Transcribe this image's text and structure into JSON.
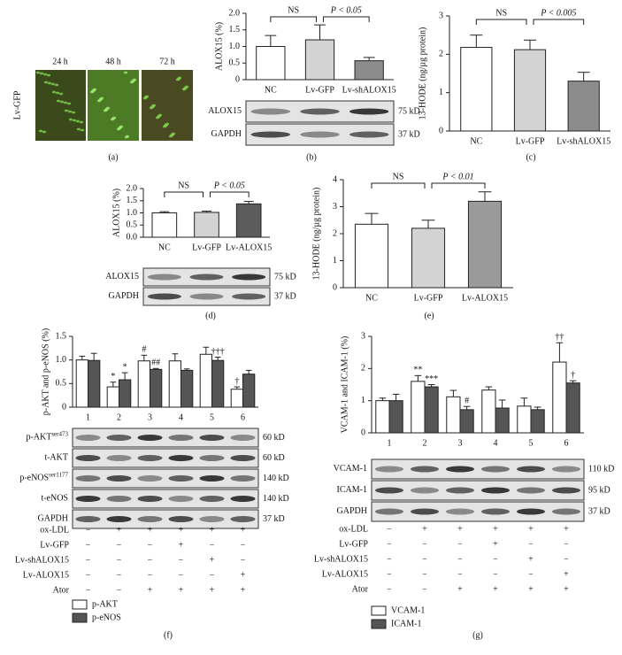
{
  "panel_a": {
    "side_label": "Lv-GFP",
    "time_labels": [
      "24 h",
      "48 h",
      "72 h"
    ],
    "panel_label": "(a)"
  },
  "chart_data": [
    {
      "type": "bar",
      "ylabel": "ALOX15 (%)",
      "categories": [
        "NC",
        "Lv-GFP",
        "Lv-shALOX15"
      ],
      "values": [
        1.0,
        1.2,
        0.57
      ],
      "errors": [
        0.33,
        0.45,
        0.1
      ],
      "colors": [
        "#ffffff",
        "#d3d3d3",
        "#8c8c8c"
      ],
      "ylim": [
        0,
        2
      ],
      "yticks": [
        0,
        0.5,
        {
          "value": 1,
          "label": "1.0"
        },
        1.5,
        {
          "value": 2,
          "label": "2.0"
        }
      ],
      "annotations": [
        "NS",
        "P < 0.05"
      ],
      "blots": [
        {
          "label": "ALOX15",
          "kd": "75 kD"
        },
        {
          "label": "GAPDH",
          "kd": "37 kD"
        }
      ],
      "panel_label": "(b)"
    },
    {
      "type": "bar",
      "ylabel": "13-HODE (ng/µg protein)",
      "categories": [
        "NC",
        "Lv-GFP",
        "Lv-shALOX15"
      ],
      "values": [
        2.18,
        2.12,
        1.3
      ],
      "errors": [
        0.32,
        0.25,
        0.23
      ],
      "colors": [
        "#ffffff",
        "#d3d3d3",
        "#8c8c8c"
      ],
      "ylim": [
        0,
        3
      ],
      "yticks": [
        0,
        1,
        2,
        3
      ],
      "annotations": [
        "NS",
        "P < 0.005"
      ],
      "panel_label": "(c)"
    },
    {
      "type": "bar",
      "ylabel": "ALOX15 (%)",
      "categories": [
        "NC",
        "Lv-GFP",
        "Lv-ALOX15"
      ],
      "values": [
        1.0,
        1.02,
        1.37
      ],
      "errors": [
        0.05,
        0.05,
        0.1
      ],
      "colors": [
        "#ffffff",
        "#d3d3d3",
        "#5c5c5c"
      ],
      "ylim": [
        0,
        2
      ],
      "yticks": [
        {
          "value": 0,
          "label": "0.0"
        },
        0.5,
        {
          "value": 1,
          "label": "1.0"
        },
        1.5,
        {
          "value": 2,
          "label": "2.0"
        }
      ],
      "annotations": [
        "NS",
        "P < 0.05"
      ],
      "blots": [
        {
          "label": "ALOX15",
          "kd": "75 kD"
        },
        {
          "label": "GAPDH",
          "kd": "37 kD"
        }
      ],
      "panel_label": "(d)"
    },
    {
      "type": "bar",
      "ylabel": "13-HODE (ng/µg protein)",
      "categories": [
        "NC",
        "Lv-GFP",
        "Lv-ALOX15"
      ],
      "values": [
        2.35,
        2.2,
        3.2
      ],
      "errors": [
        0.4,
        0.3,
        0.35
      ],
      "colors": [
        "#ffffff",
        "#d3d3d3",
        "#9a9a9a"
      ],
      "ylim": [
        0,
        4
      ],
      "yticks": [
        0,
        1,
        2,
        3,
        4
      ],
      "annotations": [
        "NS",
        "P < 0.01"
      ],
      "panel_label": "(e)"
    },
    {
      "type": "grouped-bar",
      "ylabel": "p-AKT and p-eNOS (%)",
      "categories": [
        "1",
        "2",
        "3",
        "4",
        "5",
        "6"
      ],
      "series": [
        {
          "name": "p-AKT",
          "color": "#ffffff",
          "values": [
            1.0,
            0.43,
            0.98,
            0.98,
            1.12,
            0.38
          ],
          "errors": [
            0.08,
            0.1,
            0.12,
            0.15,
            0.15,
            0.05
          ],
          "markers": [
            null,
            "*",
            "#",
            null,
            null,
            "†"
          ]
        },
        {
          "name": "p-eNOS",
          "color": "#555555",
          "values": [
            0.99,
            0.58,
            0.8,
            0.78,
            0.99,
            0.7
          ],
          "errors": [
            0.15,
            0.15,
            0.02,
            0.03,
            0.07,
            0.08
          ],
          "markers": [
            null,
            "*",
            "##",
            null,
            "†††",
            null
          ]
        }
      ],
      "ylim": [
        0,
        1.5
      ],
      "yticks": [
        0,
        0.5,
        {
          "value": 1,
          "label": "1.0"
        },
        1.5
      ],
      "blots": [
        {
          "label": "p-AKT",
          "sup": "ser473",
          "kd": "60 kD"
        },
        {
          "label": "t-AKT",
          "kd": "60 kD"
        },
        {
          "label": "p-eNOS",
          "sup": "ser1177",
          "kd": "140 kD"
        },
        {
          "label": "t-eNOS",
          "kd": "140 kD"
        },
        {
          "label": "GAPDH",
          "kd": "37 kD"
        }
      ],
      "treatments": [
        {
          "label": "ox-LDL",
          "marks": [
            "−",
            "+",
            "+",
            "+",
            "+",
            "+"
          ]
        },
        {
          "label": "Lv-GFP",
          "marks": [
            "−",
            "−",
            "−",
            "+",
            "−",
            "−"
          ]
        },
        {
          "label": "Lv-shALOX15",
          "marks": [
            "−",
            "−",
            "−",
            "−",
            "+",
            "−"
          ]
        },
        {
          "label": "Lv-ALOX15",
          "marks": [
            "−",
            "−",
            "−",
            "−",
            "−",
            "+"
          ]
        },
        {
          "label": "Ator",
          "marks": [
            "−",
            "−",
            "+",
            "+",
            "+",
            "+"
          ]
        }
      ],
      "panel_label": "(f)"
    },
    {
      "type": "grouped-bar",
      "ylabel": "VCAM-1 and ICAM-1 (%)",
      "categories": [
        "1",
        "2",
        "3",
        "4",
        "5",
        "6"
      ],
      "series": [
        {
          "name": "VCAM-1",
          "color": "#ffffff",
          "values": [
            1.0,
            1.6,
            1.12,
            1.33,
            0.83,
            2.2
          ],
          "errors": [
            0.08,
            0.18,
            0.2,
            0.1,
            0.25,
            0.6
          ],
          "markers": [
            null,
            "**",
            null,
            null,
            null,
            "††"
          ]
        },
        {
          "name": "ICAM-1",
          "color": "#555555",
          "values": [
            1.0,
            1.43,
            0.72,
            0.77,
            0.72,
            1.55
          ],
          "errors": [
            0.2,
            0.07,
            0.1,
            0.25,
            0.08,
            0.07
          ],
          "markers": [
            null,
            "***",
            "#",
            null,
            null,
            "†"
          ]
        }
      ],
      "ylim": [
        0,
        3
      ],
      "yticks": [
        0,
        1,
        2,
        3
      ],
      "blots": [
        {
          "label": "VCAM-1",
          "kd": "110 kD"
        },
        {
          "label": "ICAM-1",
          "kd": "95 kD"
        },
        {
          "label": "GAPDH",
          "kd": "37 kD"
        }
      ],
      "treatments": [
        {
          "label": "ox-LDL",
          "marks": [
            "−",
            "+",
            "+",
            "+",
            "+",
            "+"
          ]
        },
        {
          "label": "Lv-GFP",
          "marks": [
            "−",
            "−",
            "−",
            "+",
            "−",
            "−"
          ]
        },
        {
          "label": "Lv-shALOX15",
          "marks": [
            "−",
            "−",
            "−",
            "−",
            "+",
            "−"
          ]
        },
        {
          "label": "Lv-ALOX15",
          "marks": [
            "−",
            "−",
            "−",
            "−",
            "−",
            "+"
          ]
        },
        {
          "label": "Ator",
          "marks": [
            "−",
            "−",
            "+",
            "+",
            "+",
            "+"
          ]
        }
      ],
      "panel_label": "(g)"
    }
  ]
}
